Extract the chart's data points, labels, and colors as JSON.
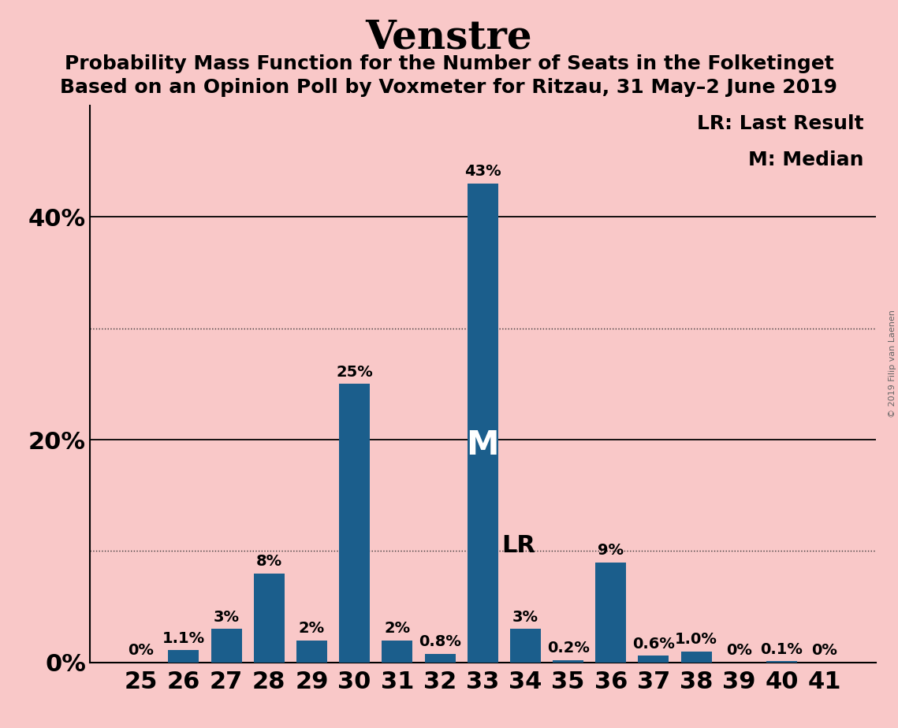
{
  "title": "Venstre",
  "subtitle1": "Probability Mass Function for the Number of Seats in the Folketinget",
  "subtitle2": "Based on an Opinion Poll by Voxmeter for Ritzau, 31 May–2 June 2019",
  "seats": [
    25,
    26,
    27,
    28,
    29,
    30,
    31,
    32,
    33,
    34,
    35,
    36,
    37,
    38,
    39,
    40,
    41
  ],
  "values": [
    0.0,
    1.1,
    3.0,
    8.0,
    2.0,
    25.0,
    2.0,
    0.8,
    43.0,
    3.0,
    0.2,
    9.0,
    0.6,
    1.0,
    0.0,
    0.1,
    0.0
  ],
  "labels": [
    "0%",
    "1.1%",
    "3%",
    "8%",
    "2%",
    "25%",
    "2%",
    "0.8%",
    "43%",
    "3%",
    "0.2%",
    "9%",
    "0.6%",
    "1.0%",
    "0%",
    "0.1%",
    "0%"
  ],
  "bar_color": "#1B5E8C",
  "background_color": "#F9C8C8",
  "median_seat": 33,
  "lr_seat": 34,
  "ylim": [
    0,
    50
  ],
  "legend_lr": "LR: Last Result",
  "legend_m": "M: Median",
  "watermark": "© 2019 Filip van Laenen",
  "solid_gridlines": [
    20,
    40
  ],
  "dotted_gridlines": [
    10,
    30
  ],
  "title_fontsize": 36,
  "subtitle_fontsize": 18,
  "bar_label_fontsize": 14,
  "axis_label_fontsize": 22,
  "legend_fontsize": 18,
  "lr_label_fontsize": 22,
  "m_label_fontsize": 30
}
